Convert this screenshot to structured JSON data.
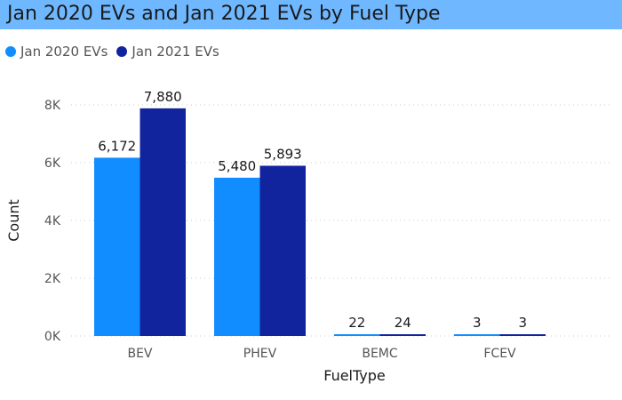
{
  "title": "Jan 2020 EVs and Jan 2021 EVs by Fuel Type",
  "colors": {
    "title_bar": "#6fb8ff",
    "jan2020": "#118dff",
    "jan2021": "#12239e",
    "gridline": "#c8c8c8"
  },
  "chart_data": {
    "type": "bar",
    "title": "Jan 2020 EVs and Jan 2021 EVs by Fuel Type",
    "xlabel": "FuelType",
    "ylabel": "Count",
    "categories": [
      "BEV",
      "PHEV",
      "BEMC",
      "FCEV"
    ],
    "series": [
      {
        "name": "Jan 2020 EVs",
        "values": [
          6172,
          5480,
          22,
          3
        ],
        "labels": [
          "6,172",
          "5,480",
          "22",
          "3"
        ]
      },
      {
        "name": "Jan 2021 EVs",
        "values": [
          7880,
          5893,
          24,
          3
        ],
        "labels": [
          "7,880",
          "5,893",
          "24",
          "3"
        ]
      }
    ],
    "ylim": [
      0,
      8000
    ],
    "yticks": [
      {
        "value": 0,
        "label": "0K"
      },
      {
        "value": 2000,
        "label": "2K"
      },
      {
        "value": 4000,
        "label": "4K"
      },
      {
        "value": 6000,
        "label": "6K"
      },
      {
        "value": 8000,
        "label": "8K"
      }
    ],
    "grid": true,
    "legend_position": "top-left"
  }
}
